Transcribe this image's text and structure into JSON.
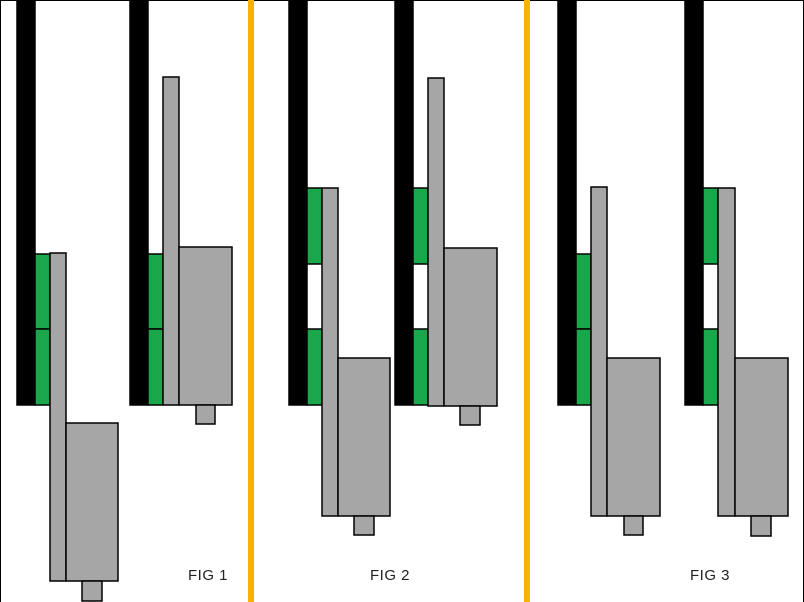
{
  "figures": [
    {
      "label": "FIG 1"
    },
    {
      "label": "FIG 2"
    },
    {
      "label": "FIG 3"
    }
  ],
  "colors": {
    "wall": "#000000",
    "pad": "#1aa64a",
    "body": "#a6a6a6",
    "outline": "#000000",
    "divider": "#f4b400",
    "background": "#ffffff"
  }
}
